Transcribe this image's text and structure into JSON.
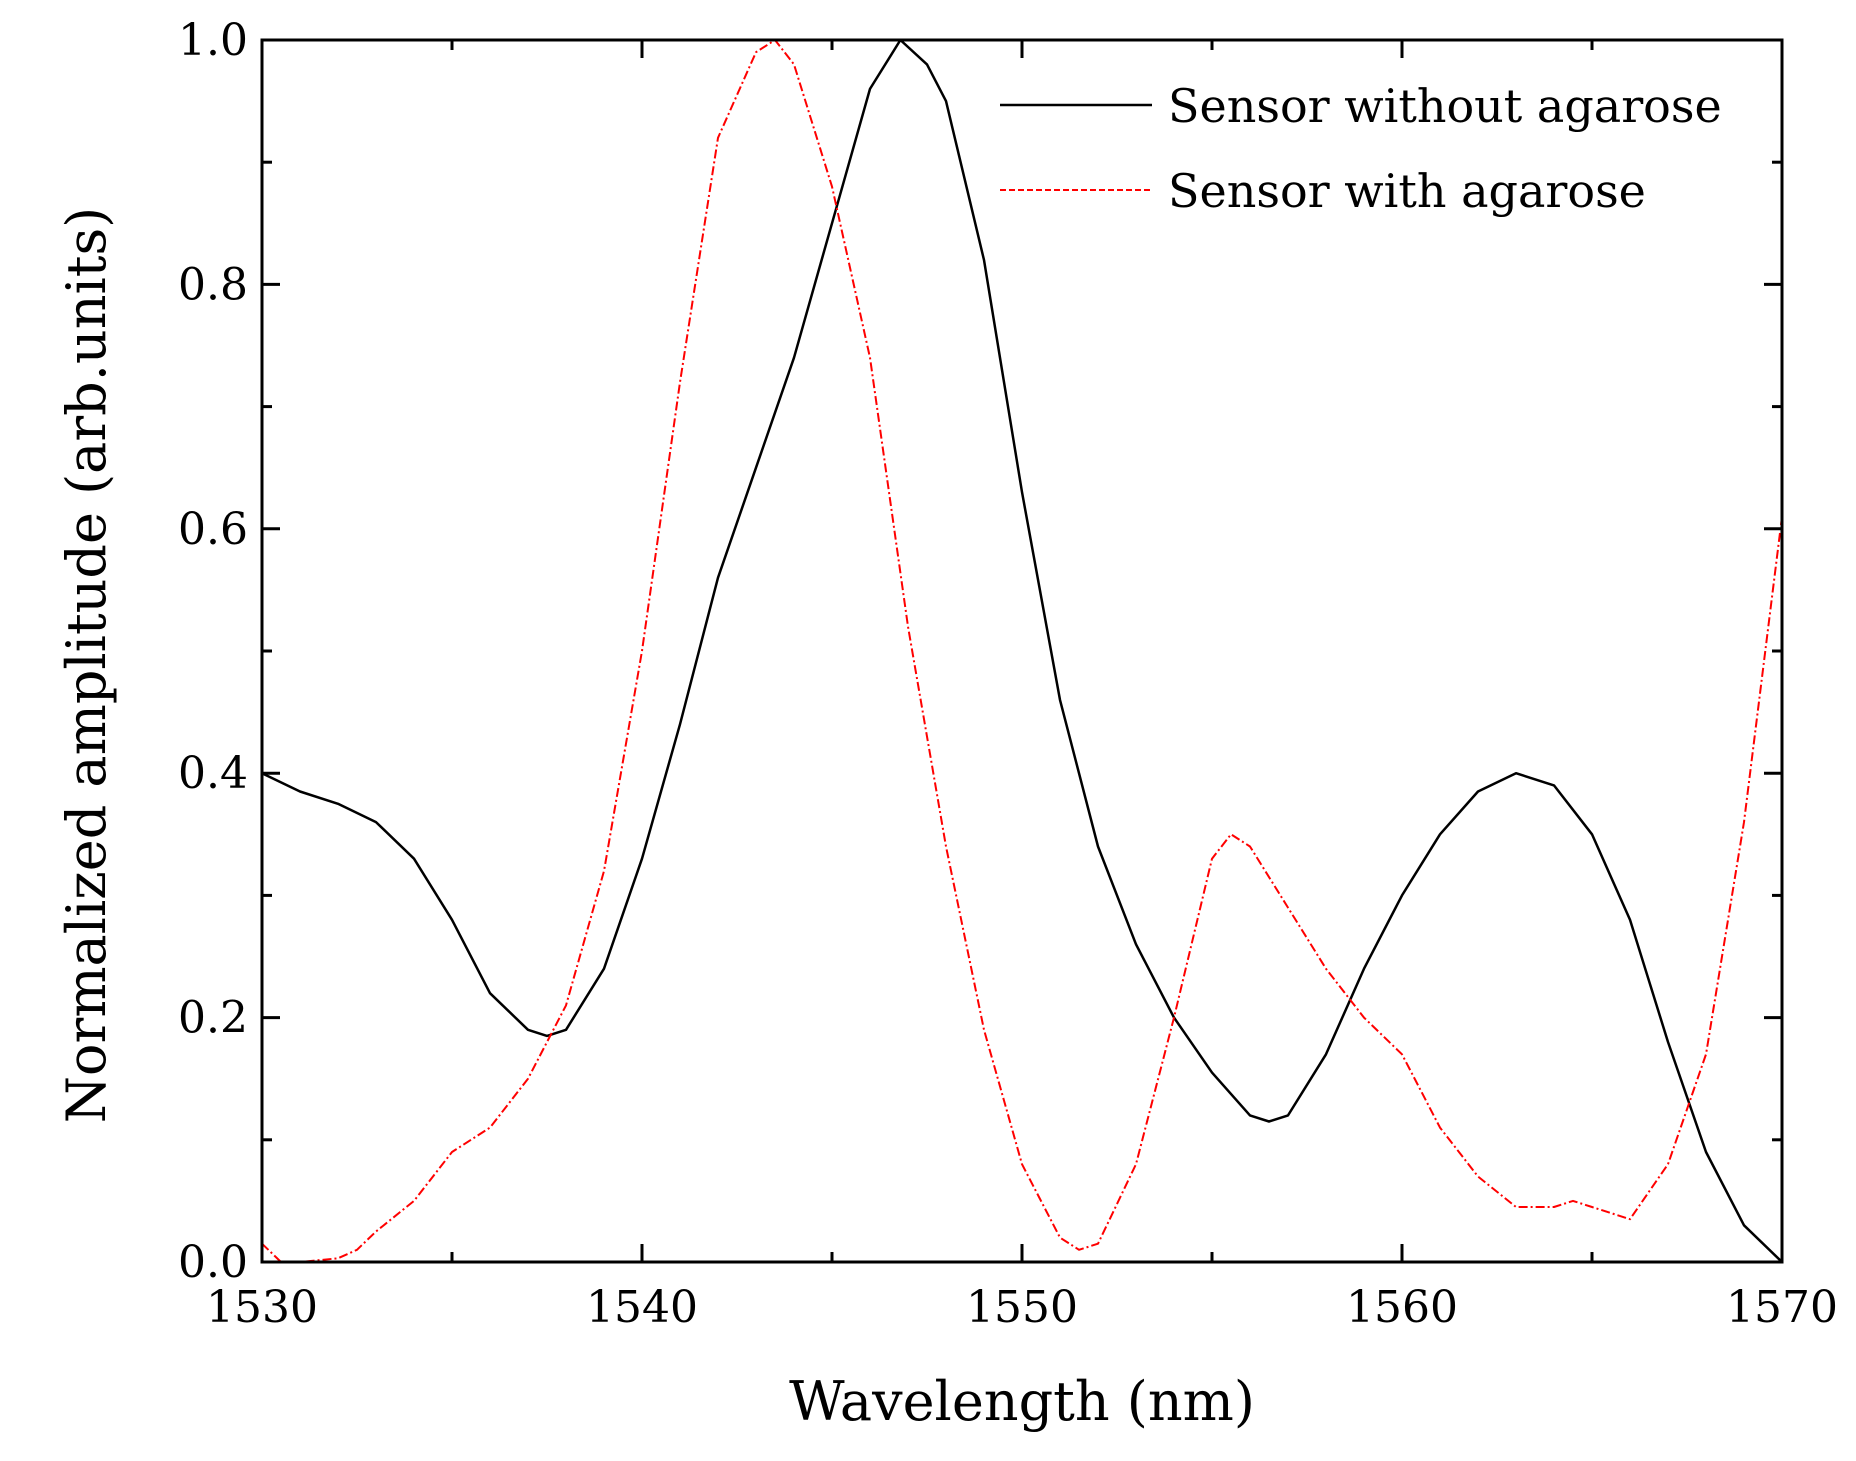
{
  "colors": {
    "series_without": "#000000",
    "series_with": "#ff0000",
    "axis": "#000000",
    "background": "#ffffff"
  },
  "chart_data": {
    "type": "line",
    "title": "",
    "xlabel": "Wavelength (nm)",
    "ylabel": "Normalized amplitude (arb.units)",
    "xlim": [
      1530,
      1570
    ],
    "ylim": [
      0.0,
      1.0
    ],
    "xticks": [
      1530,
      1540,
      1550,
      1560,
      1570
    ],
    "xtick_labels": [
      "1530",
      "1540",
      "1550",
      "1560",
      "1570"
    ],
    "yticks": [
      0.0,
      0.2,
      0.4,
      0.6,
      0.8,
      1.0
    ],
    "ytick_labels": [
      "0.0",
      "0.2",
      "0.4",
      "0.6",
      "0.8",
      "1.0"
    ],
    "grid": false,
    "legend_position": "top-right",
    "series": [
      {
        "name": "Sensor without agarose",
        "line_style": "solid",
        "x": [
          1530,
          1531,
          1532,
          1533,
          1534,
          1535,
          1536,
          1537,
          1537.5,
          1538,
          1539,
          1540,
          1541,
          1542,
          1543,
          1544,
          1545,
          1546,
          1546.8,
          1547.5,
          1548,
          1549,
          1550,
          1551,
          1552,
          1553,
          1554,
          1555,
          1556,
          1556.5,
          1557,
          1558,
          1559,
          1560,
          1561,
          1562,
          1563,
          1564,
          1565,
          1566,
          1567,
          1568,
          1569,
          1570
        ],
        "y": [
          0.4,
          0.385,
          0.375,
          0.36,
          0.33,
          0.28,
          0.22,
          0.19,
          0.185,
          0.19,
          0.24,
          0.33,
          0.44,
          0.56,
          0.65,
          0.74,
          0.85,
          0.96,
          1.0,
          0.98,
          0.95,
          0.82,
          0.63,
          0.46,
          0.34,
          0.26,
          0.2,
          0.155,
          0.12,
          0.115,
          0.12,
          0.17,
          0.24,
          0.3,
          0.35,
          0.385,
          0.4,
          0.39,
          0.35,
          0.28,
          0.18,
          0.09,
          0.03,
          0.0
        ]
      },
      {
        "name": "Sensor with agarose",
        "line_style": "dashed",
        "x": [
          1530,
          1530.5,
          1531,
          1532,
          1532.5,
          1533,
          1534,
          1535,
          1536,
          1537,
          1537.5,
          1538,
          1539,
          1540,
          1541,
          1542,
          1543,
          1543.5,
          1544,
          1545,
          1546,
          1547,
          1548,
          1549,
          1550,
          1551,
          1551.5,
          1552,
          1553,
          1554,
          1555,
          1555.5,
          1556,
          1557,
          1558,
          1559,
          1560,
          1561,
          1562,
          1563,
          1564,
          1564.5,
          1565,
          1566,
          1567,
          1568,
          1569,
          1570
        ],
        "y": [
          0.015,
          0.0,
          0.0,
          0.003,
          0.01,
          0.025,
          0.05,
          0.09,
          0.11,
          0.15,
          0.18,
          0.21,
          0.32,
          0.5,
          0.72,
          0.92,
          0.99,
          1.0,
          0.98,
          0.88,
          0.74,
          0.52,
          0.34,
          0.19,
          0.08,
          0.02,
          0.01,
          0.015,
          0.08,
          0.2,
          0.33,
          0.35,
          0.34,
          0.29,
          0.24,
          0.2,
          0.17,
          0.11,
          0.07,
          0.045,
          0.045,
          0.05,
          0.045,
          0.035,
          0.08,
          0.17,
          0.36,
          0.61
        ]
      }
    ]
  }
}
